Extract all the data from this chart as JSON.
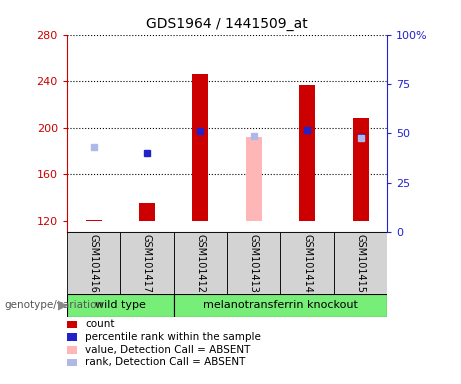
{
  "title": "GDS1964 / 1441509_at",
  "samples": [
    "GSM101416",
    "GSM101417",
    "GSM101412",
    "GSM101413",
    "GSM101414",
    "GSM101415"
  ],
  "ylim_left": [
    110,
    280
  ],
  "ylim_right": [
    0,
    100
  ],
  "yticks_left": [
    120,
    160,
    200,
    240,
    280
  ],
  "yticks_right": [
    0,
    25,
    50,
    75,
    100
  ],
  "ytick_right_labels": [
    "0",
    "25",
    "50",
    "75",
    "100%"
  ],
  "count_values": [
    121,
    135,
    246,
    null,
    237,
    208
  ],
  "percentile_rank": [
    null,
    178,
    197,
    null,
    198,
    192
  ],
  "absent_value": [
    null,
    null,
    null,
    192,
    null,
    null
  ],
  "absent_rank": [
    183,
    null,
    null,
    193,
    null,
    191
  ],
  "bar_color": "#cc0000",
  "absent_bar_color": "#ffb6b6",
  "rank_color": "#2222cc",
  "absent_rank_color": "#b0b8e8",
  "ylabel_left_color": "#cc0000",
  "ylabel_right_color": "#2222cc",
  "bar_width": 0.3,
  "marker_size": 5,
  "wt_group": [
    0,
    1
  ],
  "ko_group": [
    2,
    3,
    4,
    5
  ],
  "wt_label": "wild type",
  "ko_label": "melanotransferrin knockout",
  "group_color": "#77ee77",
  "sample_box_color": "#d3d3d3",
  "genotype_label": "genotype/variation",
  "legend_items": [
    {
      "label": "count",
      "color": "#cc0000"
    },
    {
      "label": "percentile rank within the sample",
      "color": "#2222cc"
    },
    {
      "label": "value, Detection Call = ABSENT",
      "color": "#ffb6b6"
    },
    {
      "label": "rank, Detection Call = ABSENT",
      "color": "#b0b8e8"
    }
  ]
}
